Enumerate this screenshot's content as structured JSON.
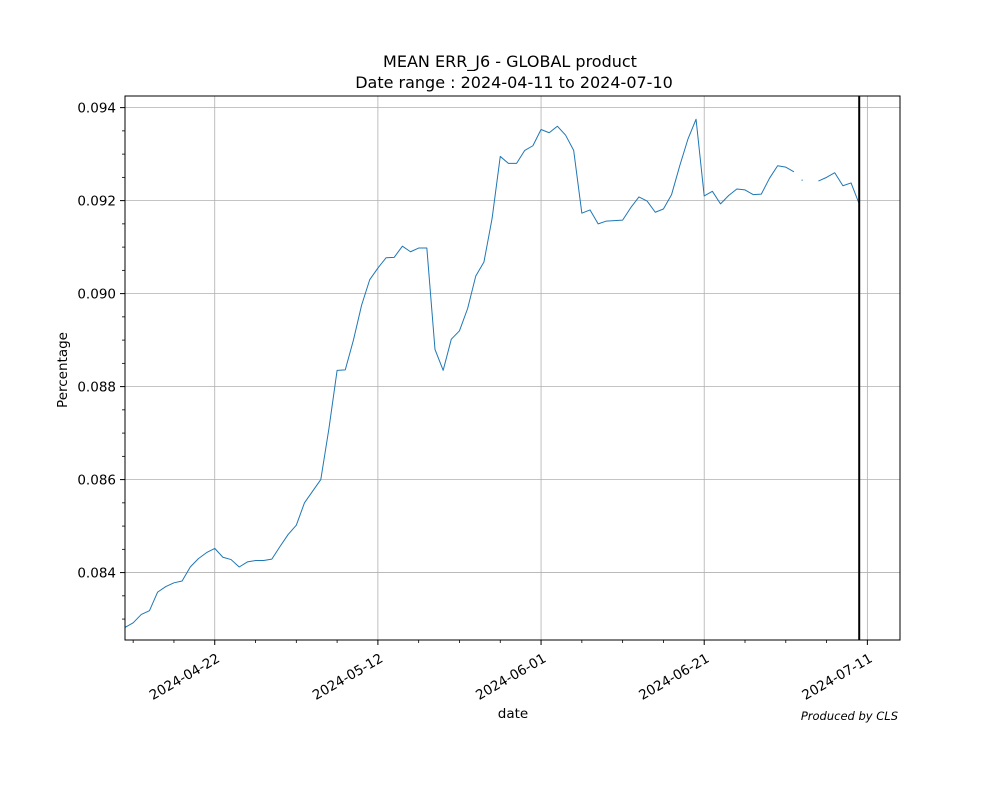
{
  "chart_data": {
    "type": "line",
    "title": "MEAN ERR_J6 - GLOBAL product",
    "subtitle": "Date range : 2024-04-11 to 2024-07-10",
    "xlabel": "date",
    "ylabel": "Percentage",
    "credit": "Produced by CLS",
    "xlim": [
      "2024-04-11",
      "2024-07-15"
    ],
    "ylim": [
      0.08255,
      0.09425
    ],
    "grid": true,
    "legend": "none",
    "x_ticks": [
      "2024-04-22",
      "2024-05-12",
      "2024-06-01",
      "2024-06-21",
      "2024-07-11"
    ],
    "y_ticks": [
      "0.084",
      "0.086",
      "0.088",
      "0.090",
      "0.092",
      "0.094"
    ],
    "vline": "2024-07-10",
    "line_color": "#1f77b4",
    "series": [
      {
        "segments": [
          {
            "x": [
              "2024-04-11",
              "2024-04-12",
              "2024-04-13",
              "2024-04-14",
              "2024-04-15",
              "2024-04-16",
              "2024-04-17",
              "2024-04-18",
              "2024-04-19",
              "2024-04-20",
              "2024-04-21",
              "2024-04-22",
              "2024-04-23",
              "2024-04-24",
              "2024-04-25",
              "2024-04-26",
              "2024-04-27",
              "2024-04-28",
              "2024-04-29",
              "2024-04-30",
              "2024-05-01",
              "2024-05-02",
              "2024-05-03",
              "2024-05-04",
              "2024-05-05",
              "2024-05-06",
              "2024-05-07",
              "2024-05-08",
              "2024-05-09",
              "2024-05-10",
              "2024-05-11",
              "2024-05-12",
              "2024-05-13",
              "2024-05-14",
              "2024-05-15",
              "2024-05-16",
              "2024-05-17",
              "2024-05-18",
              "2024-05-19",
              "2024-05-20",
              "2024-05-21",
              "2024-05-22",
              "2024-05-23",
              "2024-05-24",
              "2024-05-25",
              "2024-05-26",
              "2024-05-27",
              "2024-05-28",
              "2024-05-29",
              "2024-05-30",
              "2024-05-31",
              "2024-06-01",
              "2024-06-02",
              "2024-06-03",
              "2024-06-04",
              "2024-06-05",
              "2024-06-06",
              "2024-06-07",
              "2024-06-08",
              "2024-06-09",
              "2024-06-10",
              "2024-06-11",
              "2024-06-12",
              "2024-06-13",
              "2024-06-14",
              "2024-06-15",
              "2024-06-16",
              "2024-06-17",
              "2024-06-18",
              "2024-06-19",
              "2024-06-20",
              "2024-06-21",
              "2024-06-22",
              "2024-06-23",
              "2024-06-24",
              "2024-06-25",
              "2024-06-26",
              "2024-06-27",
              "2024-06-28",
              "2024-06-29",
              "2024-06-30",
              "2024-07-01",
              "2024-07-02"
            ],
            "y": [
              0.08282,
              0.08292,
              0.0831,
              0.08318,
              0.08358,
              0.0837,
              0.08378,
              0.08382,
              0.08412,
              0.0843,
              0.08443,
              0.08452,
              0.08433,
              0.08428,
              0.08412,
              0.08423,
              0.08426,
              0.08426,
              0.08429,
              0.08456,
              0.08482,
              0.08502,
              0.0855,
              0.08575,
              0.086,
              0.0871,
              0.08835,
              0.08836,
              0.089,
              0.08975,
              0.0903,
              0.09055,
              0.09077,
              0.09078,
              0.09102,
              0.0909,
              0.09098,
              0.09098,
              0.0888,
              0.08835,
              0.08902,
              0.0892,
              0.08968,
              0.09038,
              0.09068,
              0.09162,
              0.09295,
              0.0928,
              0.0928,
              0.09308,
              0.09318,
              0.09353,
              0.09346,
              0.0936,
              0.09341,
              0.09308,
              0.09173,
              0.0918,
              0.0915,
              0.09156,
              0.09157,
              0.09158,
              0.09185,
              0.09208,
              0.09199,
              0.09175,
              0.09182,
              0.09213,
              0.09275,
              0.09332,
              0.09375,
              0.0921,
              0.0922,
              0.09193,
              0.09211,
              0.09225,
              0.09223,
              0.09213,
              0.09214,
              0.09248,
              0.09275,
              0.09272,
              0.09262
            ]
          },
          {
            "x": [
              "2024-07-03"
            ],
            "y": [
              0.09244
            ]
          },
          {
            "x": [
              "2024-07-05",
              "2024-07-06",
              "2024-07-07",
              "2024-07-08",
              "2024-07-09",
              "2024-07-10"
            ],
            "y": [
              0.09242,
              0.0925,
              0.0926,
              0.09232,
              0.09238,
              0.09193
            ]
          }
        ]
      }
    ]
  }
}
